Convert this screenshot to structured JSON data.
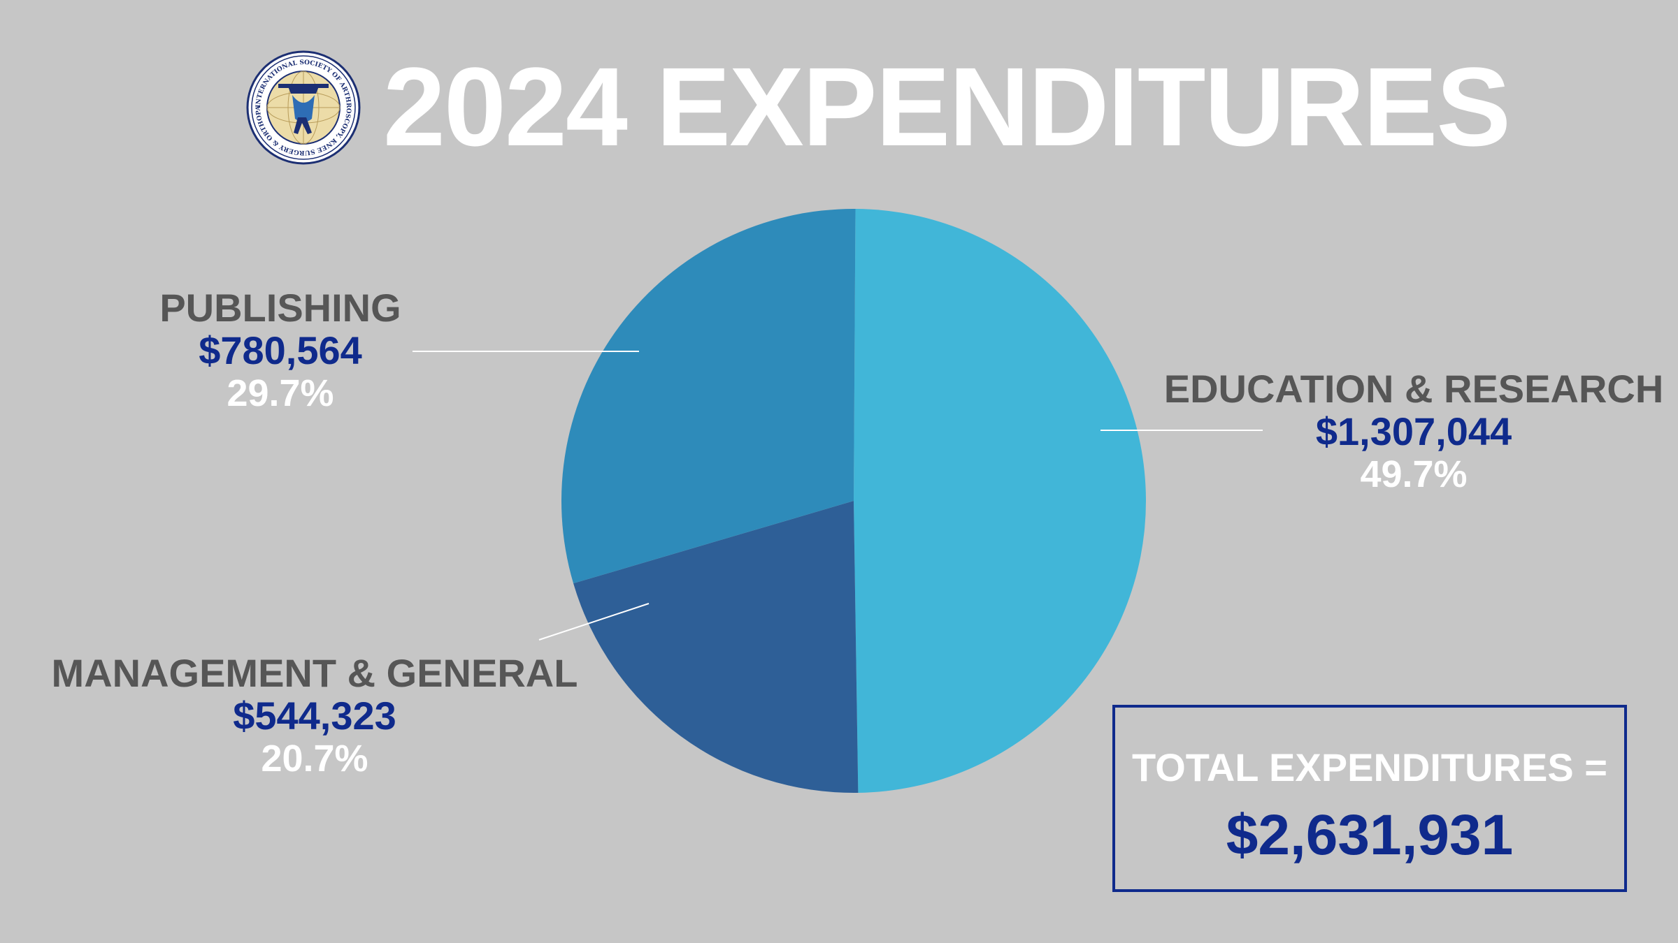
{
  "title": "2024 EXPENDITURES",
  "logo": {
    "icon": "organization-seal-logo",
    "ring_text": "INTERNATIONAL SOCIETY OF ARTHROSCOPY, KNEE SURGERY & ORTHOPAEDIC SPORTS MEDICINE • 1995 •"
  },
  "colors": {
    "background": "#c6c6c6",
    "education": "#41b6d8",
    "publishing": "#2e8bba",
    "management": "#2e5f97",
    "amount_text": "#0f2a8c",
    "category_text": "#565656",
    "percent_text": "#ffffff",
    "leader_line": "#ffffff"
  },
  "chart_data": {
    "type": "pie",
    "slices": [
      {
        "name": "EDUCATION & RESEARCH",
        "amount": "$1,307,044",
        "value": 1307044,
        "percent": "49.7%",
        "color": "#41b6d8"
      },
      {
        "name": "MANAGEMENT & GENERAL",
        "amount": "$544,323",
        "value": 544323,
        "percent": "20.7%",
        "color": "#2e5f97"
      },
      {
        "name": "PUBLISHING",
        "amount": "$780,564",
        "value": 780564,
        "percent": "29.7%",
        "color": "#2e8bba"
      }
    ],
    "start_angle": "12 o'clock",
    "direction": "clockwise"
  },
  "labels": {
    "publishing": {
      "category": "PUBLISHING",
      "amount": "$780,564",
      "percent": "29.7%"
    },
    "education": {
      "category": "EDUCATION & RESEARCH",
      "amount": "$1,307,044",
      "percent": "49.7%"
    },
    "management": {
      "category": "MANAGEMENT & GENERAL",
      "amount": "$544,323",
      "percent": "20.7%"
    }
  },
  "total": {
    "label": "TOTAL EXPENDITURES =",
    "value": "$2,631,931"
  }
}
